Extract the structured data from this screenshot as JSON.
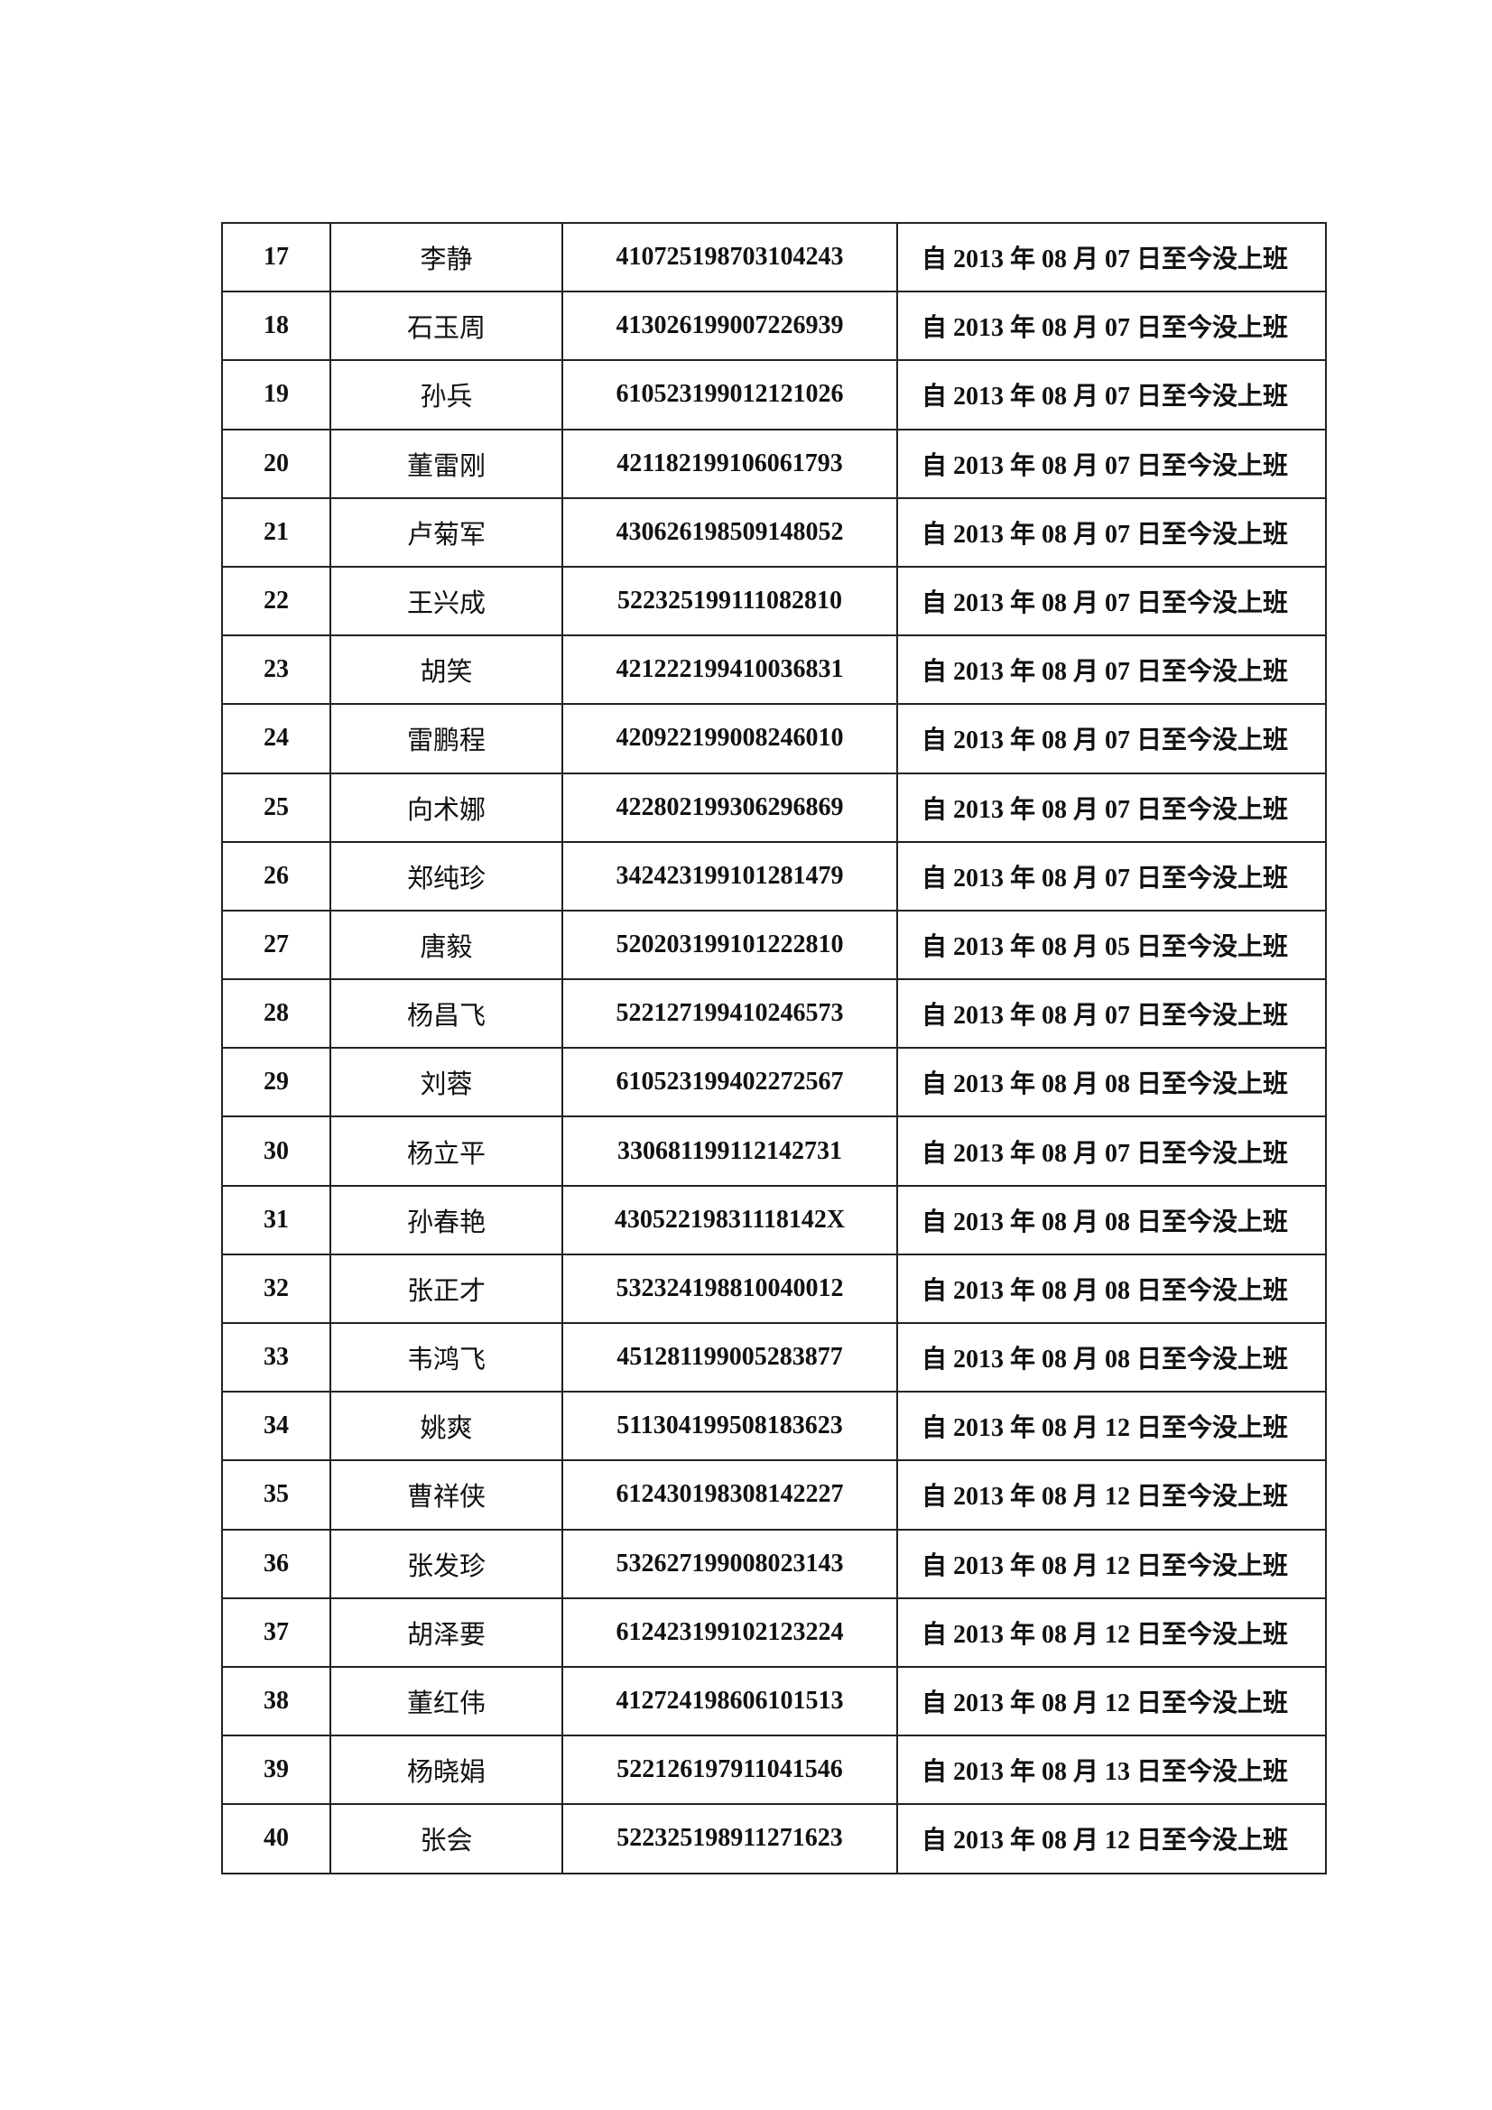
{
  "table": {
    "rows": [
      {
        "no": "17",
        "name": "李静",
        "id": "410725198703104243",
        "status": "自 2013 年 08 月 07 日至今没上班"
      },
      {
        "no": "18",
        "name": "石玉周",
        "id": "413026199007226939",
        "status": "自 2013 年 08 月 07 日至今没上班"
      },
      {
        "no": "19",
        "name": "孙兵",
        "id": "610523199012121026",
        "status": "自 2013 年 08 月 07 日至今没上班"
      },
      {
        "no": "20",
        "name": "董雷刚",
        "id": "421182199106061793",
        "status": "自 2013 年 08 月 07 日至今没上班"
      },
      {
        "no": "21",
        "name": "卢菊军",
        "id": "430626198509148052",
        "status": "自 2013 年 08 月 07 日至今没上班"
      },
      {
        "no": "22",
        "name": "王兴成",
        "id": "522325199111082810",
        "status": "自 2013 年 08 月 07 日至今没上班"
      },
      {
        "no": "23",
        "name": "胡笑",
        "id": "421222199410036831",
        "status": "自 2013 年 08 月 07 日至今没上班"
      },
      {
        "no": "24",
        "name": "雷鹏程",
        "id": "420922199008246010",
        "status": "自 2013 年 08 月 07 日至今没上班"
      },
      {
        "no": "25",
        "name": "向术娜",
        "id": "422802199306296869",
        "status": "自 2013 年 08 月 07 日至今没上班"
      },
      {
        "no": "26",
        "name": "郑纯珍",
        "id": "342423199101281479",
        "status": "自 2013 年 08 月 07 日至今没上班"
      },
      {
        "no": "27",
        "name": "唐毅",
        "id": "520203199101222810",
        "status": "自 2013 年 08 月 05 日至今没上班"
      },
      {
        "no": "28",
        "name": "杨昌飞",
        "id": "522127199410246573",
        "status": "自 2013 年 08 月 07 日至今没上班"
      },
      {
        "no": "29",
        "name": "刘蓉",
        "id": "610523199402272567",
        "status": "自 2013 年 08 月 08 日至今没上班"
      },
      {
        "no": "30",
        "name": "杨立平",
        "id": "330681199112142731",
        "status": "自 2013 年 08 月 07 日至今没上班"
      },
      {
        "no": "31",
        "name": "孙春艳",
        "id": "43052219831118142X",
        "status": "自 2013 年 08 月 08 日至今没上班"
      },
      {
        "no": "32",
        "name": "张正才",
        "id": "532324198810040012",
        "status": "自 2013 年 08 月 08 日至今没上班"
      },
      {
        "no": "33",
        "name": "韦鸿飞",
        "id": "451281199005283877",
        "status": "自 2013 年 08 月 08 日至今没上班"
      },
      {
        "no": "34",
        "name": "姚爽",
        "id": "511304199508183623",
        "status": "自 2013 年 08 月 12 日至今没上班"
      },
      {
        "no": "35",
        "name": "曹祥侠",
        "id": "612430198308142227",
        "status": "自 2013 年 08 月 12 日至今没上班"
      },
      {
        "no": "36",
        "name": "张发珍",
        "id": "532627199008023143",
        "status": "自 2013 年 08 月 12 日至今没上班"
      },
      {
        "no": "37",
        "name": "胡泽要",
        "id": "612423199102123224",
        "status": "自 2013 年 08 月 12 日至今没上班"
      },
      {
        "no": "38",
        "name": "董红伟",
        "id": "412724198606101513",
        "status": "自 2013 年 08 月 12 日至今没上班"
      },
      {
        "no": "39",
        "name": "杨晓娟",
        "id": "522126197911041546",
        "status": "自 2013 年 08 月 13 日至今没上班"
      },
      {
        "no": "40",
        "name": "张会",
        "id": "522325198911271623",
        "status": "自 2013 年 08 月 12 日至今没上班"
      }
    ]
  }
}
